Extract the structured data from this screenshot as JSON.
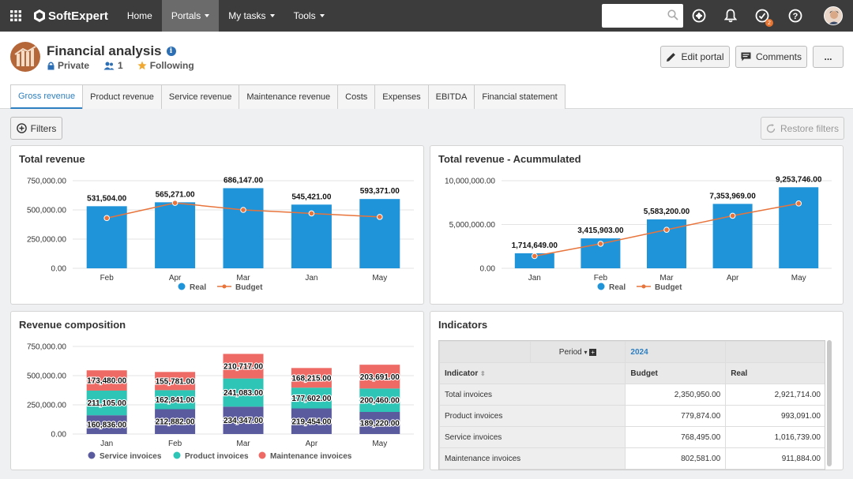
{
  "topbar": {
    "brand": "SoftExpert",
    "nav": [
      {
        "label": "Home",
        "dropdown": false
      },
      {
        "label": "Portals",
        "dropdown": true,
        "active": true
      },
      {
        "label": "My tasks",
        "dropdown": true
      },
      {
        "label": "Tools",
        "dropdown": true
      }
    ],
    "search_value": "",
    "notification_badge": "2",
    "icons": [
      "grid-icon",
      "plus-circle-icon",
      "bell-icon",
      "tasks-icon",
      "help-icon"
    ]
  },
  "portal": {
    "title": "Financial analysis",
    "privacy": "Private",
    "members": "1",
    "following": "Following",
    "actions": {
      "edit": "Edit portal",
      "comments": "Comments",
      "more": "..."
    }
  },
  "tabs": [
    "Gross revenue",
    "Product revenue",
    "Service revenue",
    "Maintenance revenue",
    "Costs",
    "Expenses",
    "EBITDA",
    "Financial statement"
  ],
  "active_tab": "Gross revenue",
  "toolbar": {
    "filters": "Filters",
    "restore": "Restore filters"
  },
  "colors": {
    "bar": "#1f94d9",
    "line": "#e8743b",
    "service": "#5a5a9f",
    "product": "#2ec4b6",
    "maintenance": "#ee6a64",
    "accent": "#2d7fc1"
  },
  "chart_data": [
    {
      "type": "bar",
      "title": "Total revenue",
      "categories": [
        "Feb",
        "Apr",
        "Mar",
        "Jan",
        "May"
      ],
      "series": [
        {
          "name": "Real",
          "type": "bar",
          "values": [
            531504,
            565271,
            686147,
            545421,
            593371
          ]
        },
        {
          "name": "Budget",
          "type": "line",
          "values": [
            430000,
            560000,
            500000,
            470000,
            440000
          ]
        }
      ],
      "value_labels": [
        "531,504.00",
        "565,271.00",
        "686,147.00",
        "545,421.00",
        "593,371.00"
      ],
      "yticks": [
        "750,000.00",
        "500,000.00",
        "250,000.00",
        "0.00"
      ],
      "ylim": [
        0,
        750000
      ],
      "legend": [
        "Real",
        "Budget"
      ]
    },
    {
      "type": "bar",
      "title": "Total revenue - Acummulated",
      "categories": [
        "Jan",
        "Feb",
        "Mar",
        "Apr",
        "May"
      ],
      "series": [
        {
          "name": "Real",
          "type": "bar",
          "values": [
            1714649,
            3415903,
            5583200,
            7353969,
            9253746
          ]
        },
        {
          "name": "Budget",
          "type": "line",
          "values": [
            1400000,
            2800000,
            4400000,
            6000000,
            7400000
          ]
        }
      ],
      "value_labels": [
        "1,714,649.00",
        "3,415,903.00",
        "5,583,200.00",
        "7,353,969.00",
        "9,253,746.00"
      ],
      "yticks": [
        "10,000,000.00",
        "5,000,000.00",
        "0.00"
      ],
      "ylim": [
        0,
        10000000
      ],
      "legend": [
        "Real",
        "Budget"
      ]
    },
    {
      "type": "bar",
      "stacked": true,
      "title": "Revenue composition",
      "categories": [
        "Jan",
        "Feb",
        "Mar",
        "Apr",
        "May"
      ],
      "series": [
        {
          "name": "Service invoices",
          "values": [
            160836,
            212882,
            234347,
            219454,
            189220
          ],
          "labels": [
            "160,836.00",
            "212,882.00",
            "234,347.00",
            "219,454.00",
            "189,220.00"
          ]
        },
        {
          "name": "Product invoices",
          "values": [
            211105,
            162841,
            241083,
            177602,
            200460
          ],
          "labels": [
            "211,105.00",
            "162,841.00",
            "241,083.00",
            "177,602.00",
            "200,460.00"
          ]
        },
        {
          "name": "Maintenance invoices",
          "values": [
            173480,
            155781,
            210717,
            168215,
            203691
          ],
          "labels": [
            "173,480.00",
            "155,781.00",
            "210,717.00",
            "168,215.00",
            "203,691.00"
          ]
        }
      ],
      "yticks": [
        "750,000.00",
        "500,000.00",
        "250,000.00",
        "0.00"
      ],
      "ylim": [
        0,
        750000
      ],
      "legend": [
        "Service invoices",
        "Product invoices",
        "Maintenance invoices"
      ]
    },
    {
      "type": "table",
      "title": "Indicators",
      "period_label": "Period",
      "period_value": "2024",
      "columns": [
        "Indicator",
        "Budget",
        "Real"
      ],
      "rows": [
        {
          "indicator": "Total invoices",
          "budget": "2,350,950.00",
          "real": "2,921,714.00"
        },
        {
          "indicator": "Product invoices",
          "budget": "779,874.00",
          "real": "993,091.00"
        },
        {
          "indicator": "Service invoices",
          "budget": "768,495.00",
          "real": "1,016,739.00"
        },
        {
          "indicator": "Maintenance invoices",
          "budget": "802,581.00",
          "real": "911,884.00"
        }
      ]
    }
  ]
}
